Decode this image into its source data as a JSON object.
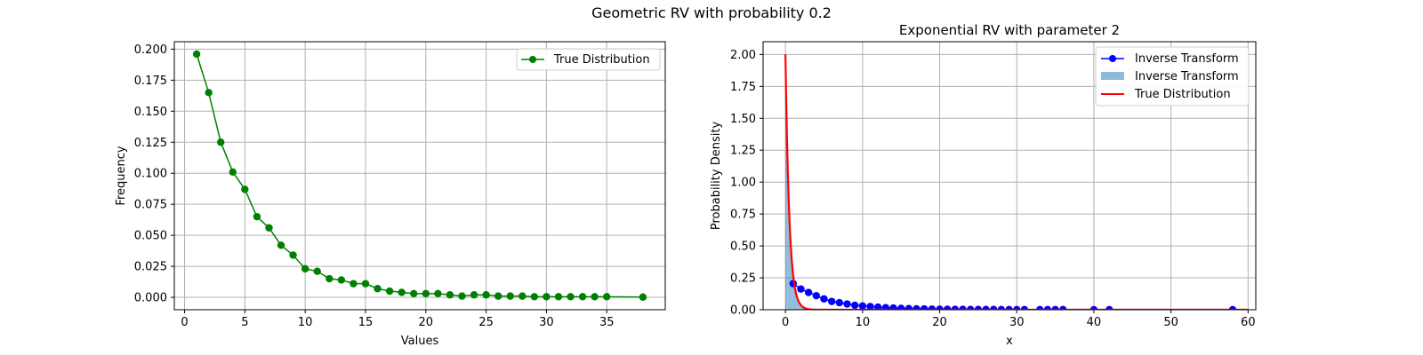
{
  "figure": {
    "suptitle": "Geometric RV with probability 0.2"
  },
  "chart_data": [
    {
      "type": "line",
      "title": "",
      "xlabel": "Values",
      "ylabel": "Frequency",
      "xlim": [
        -0.85,
        39.85
      ],
      "ylim": [
        -0.01,
        0.206
      ],
      "xticks": [
        0,
        5,
        10,
        15,
        20,
        25,
        30,
        35
      ],
      "yticks": [
        0.0,
        0.025,
        0.05,
        0.075,
        0.1,
        0.125,
        0.15,
        0.175,
        0.2
      ],
      "ytick_labels": [
        "0.000",
        "0.025",
        "0.050",
        "0.075",
        "0.100",
        "0.125",
        "0.150",
        "0.175",
        "0.200"
      ],
      "grid": true,
      "legend": "top-right",
      "colors": {
        "series": "#008000"
      },
      "series": [
        {
          "name": "True Distribution",
          "style": "line-marker",
          "x": [
            1,
            2,
            3,
            4,
            5,
            6,
            7,
            8,
            9,
            10,
            11,
            12,
            13,
            14,
            15,
            16,
            17,
            18,
            19,
            20,
            21,
            22,
            23,
            24,
            25,
            26,
            27,
            28,
            29,
            30,
            31,
            32,
            33,
            34,
            35,
            38
          ],
          "y": [
            0.196,
            0.165,
            0.125,
            0.101,
            0.087,
            0.065,
            0.056,
            0.042,
            0.034,
            0.023,
            0.021,
            0.015,
            0.014,
            0.011,
            0.011,
            0.007,
            0.005,
            0.004,
            0.003,
            0.003,
            0.003,
            0.002,
            0.001,
            0.002,
            0.002,
            0.001,
            0.001,
            0.001,
            0.0005,
            0.0005,
            0.0005,
            0.0005,
            0.0005,
            0.0005,
            0.0005,
            0.0002
          ]
        }
      ]
    },
    {
      "type": "line",
      "title": "Exponential RV with parameter 2",
      "xlabel": "x",
      "ylabel": "Probability Density",
      "xlim": [
        -2.9,
        61
      ],
      "ylim": [
        0,
        2.1
      ],
      "xticks": [
        0,
        10,
        20,
        30,
        40,
        50,
        60
      ],
      "yticks": [
        0.0,
        0.25,
        0.5,
        0.75,
        1.0,
        1.25,
        1.5,
        1.75,
        2.0
      ],
      "ytick_labels": [
        "0.00",
        "0.25",
        "0.50",
        "0.75",
        "1.00",
        "1.25",
        "1.50",
        "1.75",
        "2.00"
      ],
      "grid": true,
      "legend": "top-right",
      "colors": {
        "markers": "#0000ff",
        "histogram": "#1f77b4",
        "true_line": "#ff0000"
      },
      "series": [
        {
          "name": "Inverse Transform",
          "style": "line-marker",
          "x": [
            1,
            2,
            3,
            4,
            5,
            6,
            7,
            8,
            9,
            10,
            11,
            12,
            13,
            14,
            15,
            16,
            17,
            18,
            19,
            20,
            21,
            22,
            23,
            24,
            25,
            26,
            27,
            28,
            29,
            30,
            31,
            33,
            34,
            35,
            36,
            40,
            42,
            58
          ],
          "y": [
            0.205,
            0.162,
            0.135,
            0.11,
            0.085,
            0.065,
            0.055,
            0.045,
            0.035,
            0.03,
            0.025,
            0.02,
            0.016,
            0.013,
            0.011,
            0.009,
            0.007,
            0.006,
            0.005,
            0.004,
            0.004,
            0.003,
            0.003,
            0.002,
            0.002,
            0.002,
            0.002,
            0.001,
            0.001,
            0.001,
            0.001,
            0.001,
            0.001,
            0.001,
            0.001,
            0.0005,
            0.0005,
            0.0003
          ]
        },
        {
          "name": "Inverse Transform",
          "style": "histogram",
          "bin_edges": [
            0,
            0.1,
            0.2,
            0.3,
            0.4,
            0.5,
            0.6,
            0.7,
            0.8,
            0.9,
            1.0,
            1.1,
            1.2,
            1.3,
            1.4,
            1.5,
            1.6,
            1.7,
            1.8,
            1.9,
            2.0,
            2.2,
            2.4,
            2.6,
            2.8,
            3.0
          ],
          "density": [
            1.9,
            1.65,
            1.35,
            1.1,
            0.9,
            0.75,
            0.6,
            0.5,
            0.4,
            0.33,
            0.27,
            0.22,
            0.18,
            0.15,
            0.12,
            0.1,
            0.08,
            0.065,
            0.055,
            0.045,
            0.03,
            0.02,
            0.013,
            0.009,
            0.006
          ]
        },
        {
          "name": "True Distribution",
          "style": "line",
          "function": "2*exp(-2x)",
          "x_range": [
            0,
            60
          ]
        }
      ]
    }
  ]
}
